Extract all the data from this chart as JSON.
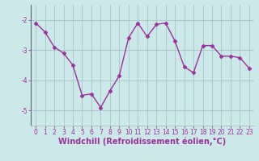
{
  "x": [
    0,
    1,
    2,
    3,
    4,
    5,
    6,
    7,
    8,
    9,
    10,
    11,
    12,
    13,
    14,
    15,
    16,
    17,
    18,
    19,
    20,
    21,
    22,
    23
  ],
  "y": [
    -2.1,
    -2.4,
    -2.9,
    -3.1,
    -3.5,
    -4.5,
    -4.45,
    -4.9,
    -4.35,
    -3.85,
    -2.6,
    -2.1,
    -2.55,
    -2.15,
    -2.1,
    -2.7,
    -3.55,
    -3.75,
    -2.85,
    -2.85,
    -3.2,
    -3.2,
    -3.25,
    -3.6
  ],
  "line_color": "#993399",
  "marker": "D",
  "marker_size": 2.5,
  "line_width": 1.0,
  "bg_color": "#cce8e8",
  "grid_color": "#aacccc",
  "xlabel": "Windchill (Refroidissement éolien,°C)",
  "xlabel_color": "#993399",
  "xlim": [
    -0.5,
    23.5
  ],
  "ylim": [
    -5.5,
    -1.5
  ],
  "yticks": [
    -5,
    -4,
    -3,
    -2
  ],
  "xticks": [
    0,
    1,
    2,
    3,
    4,
    5,
    6,
    7,
    8,
    9,
    10,
    11,
    12,
    13,
    14,
    15,
    16,
    17,
    18,
    19,
    20,
    21,
    22,
    23
  ],
  "tick_color": "#993399",
  "tick_fontsize": 5.5,
  "xlabel_fontsize": 7.0,
  "spine_color": "#7799aa"
}
